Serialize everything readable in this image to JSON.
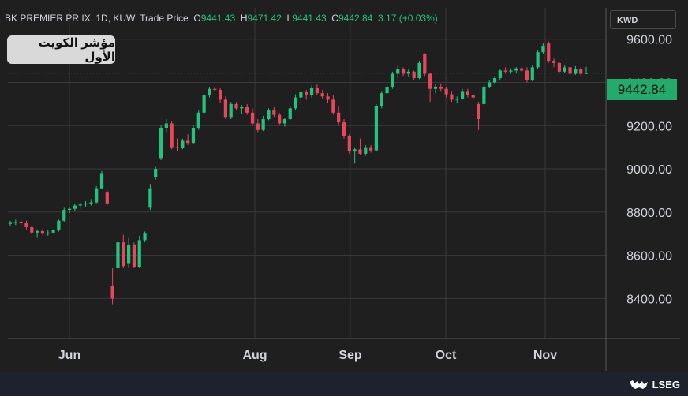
{
  "header": {
    "symbol": "BK PREMIER PR IX, 1D, KUW, Trade Price",
    "open_label": "O",
    "open": "9441.43",
    "high_label": "H",
    "high": "9471.42",
    "low_label": "L",
    "low": "9441.43",
    "close_label": "C",
    "close": "9442.84",
    "change": "3.17 (+0.03%)"
  },
  "title": "مؤشر الكويت الأول",
  "currency": "KWD",
  "last_price": "9442.84",
  "brand": "LSEG",
  "colors": {
    "up": "#22c37d",
    "down": "#e8475b",
    "background": "#1f1f1f",
    "grid": "#3a3a3a",
    "last_price_bg": "#22ab6b"
  },
  "chart_data": {
    "type": "candlestick",
    "y_ticks": [
      "9600.00",
      "9400.00",
      "9200.00",
      "9000.00",
      "8800.00",
      "8600.00",
      "8400.00"
    ],
    "y_tick_values": [
      9600,
      9400,
      9200,
      9000,
      8800,
      8600,
      8400
    ],
    "x_ticks": [
      "Jun",
      "Aug",
      "Sep",
      "Oct",
      "Nov"
    ],
    "ylim": [
      8215,
      9745
    ],
    "grid": true,
    "candles": [
      {
        "o": 8745,
        "h": 8760,
        "l": 8735,
        "c": 8750
      },
      {
        "o": 8750,
        "h": 8765,
        "l": 8740,
        "c": 8755
      },
      {
        "o": 8755,
        "h": 8770,
        "l": 8740,
        "c": 8748
      },
      {
        "o": 8748,
        "h": 8760,
        "l": 8720,
        "c": 8730
      },
      {
        "o": 8730,
        "h": 8740,
        "l": 8695,
        "c": 8705
      },
      {
        "o": 8705,
        "h": 8720,
        "l": 8680,
        "c": 8712
      },
      {
        "o": 8712,
        "h": 8720,
        "l": 8695,
        "c": 8700
      },
      {
        "o": 8700,
        "h": 8715,
        "l": 8690,
        "c": 8705
      },
      {
        "o": 8705,
        "h": 8720,
        "l": 8700,
        "c": 8715
      },
      {
        "o": 8715,
        "h": 8765,
        "l": 8710,
        "c": 8760
      },
      {
        "o": 8760,
        "h": 8820,
        "l": 8755,
        "c": 8810
      },
      {
        "o": 8810,
        "h": 8825,
        "l": 8795,
        "c": 8815
      },
      {
        "o": 8815,
        "h": 8840,
        "l": 8805,
        "c": 8830
      },
      {
        "o": 8830,
        "h": 8845,
        "l": 8815,
        "c": 8835
      },
      {
        "o": 8835,
        "h": 8850,
        "l": 8825,
        "c": 8840
      },
      {
        "o": 8840,
        "h": 8860,
        "l": 8830,
        "c": 8845
      },
      {
        "o": 8845,
        "h": 8920,
        "l": 8840,
        "c": 8910
      },
      {
        "o": 8910,
        "h": 8990,
        "l": 8905,
        "c": 8980
      },
      {
        "o": 8890,
        "h": 8900,
        "l": 8830,
        "c": 8840
      },
      {
        "o": 8460,
        "h": 8540,
        "l": 8370,
        "c": 8400
      },
      {
        "o": 8540,
        "h": 8680,
        "l": 8530,
        "c": 8660
      },
      {
        "o": 8660,
        "h": 8695,
        "l": 8540,
        "c": 8550
      },
      {
        "o": 8560,
        "h": 8680,
        "l": 8540,
        "c": 8650
      },
      {
        "o": 8650,
        "h": 8660,
        "l": 8540,
        "c": 8545
      },
      {
        "o": 8545,
        "h": 8690,
        "l": 8540,
        "c": 8670
      },
      {
        "o": 8670,
        "h": 8710,
        "l": 8660,
        "c": 8700
      },
      {
        "o": 8820,
        "h": 8930,
        "l": 8810,
        "c": 8910
      },
      {
        "o": 8960,
        "h": 9010,
        "l": 8950,
        "c": 9000
      },
      {
        "o": 9050,
        "h": 9200,
        "l": 9040,
        "c": 9190
      },
      {
        "o": 9190,
        "h": 9230,
        "l": 9170,
        "c": 9210
      },
      {
        "o": 9210,
        "h": 9220,
        "l": 9090,
        "c": 9100
      },
      {
        "o": 9100,
        "h": 9140,
        "l": 9080,
        "c": 9095
      },
      {
        "o": 9095,
        "h": 9140,
        "l": 9090,
        "c": 9130
      },
      {
        "o": 9130,
        "h": 9160,
        "l": 9110,
        "c": 9120
      },
      {
        "o": 9120,
        "h": 9205,
        "l": 9115,
        "c": 9190
      },
      {
        "o": 9190,
        "h": 9270,
        "l": 9180,
        "c": 9260
      },
      {
        "o": 9260,
        "h": 9345,
        "l": 9250,
        "c": 9340
      },
      {
        "o": 9340,
        "h": 9380,
        "l": 9330,
        "c": 9370
      },
      {
        "o": 9370,
        "h": 9380,
        "l": 9360,
        "c": 9365
      },
      {
        "o": 9365,
        "h": 9375,
        "l": 9305,
        "c": 9320
      },
      {
        "o": 9320,
        "h": 9335,
        "l": 9230,
        "c": 9240
      },
      {
        "o": 9240,
        "h": 9310,
        "l": 9230,
        "c": 9300
      },
      {
        "o": 9300,
        "h": 9310,
        "l": 9270,
        "c": 9280
      },
      {
        "o": 9280,
        "h": 9295,
        "l": 9255,
        "c": 9285
      },
      {
        "o": 9285,
        "h": 9300,
        "l": 9250,
        "c": 9260
      },
      {
        "o": 9260,
        "h": 9280,
        "l": 9200,
        "c": 9210
      },
      {
        "o": 9210,
        "h": 9230,
        "l": 9170,
        "c": 9180
      },
      {
        "o": 9180,
        "h": 9245,
        "l": 9175,
        "c": 9230
      },
      {
        "o": 9230,
        "h": 9280,
        "l": 9225,
        "c": 9270
      },
      {
        "o": 9270,
        "h": 9285,
        "l": 9240,
        "c": 9250
      },
      {
        "o": 9250,
        "h": 9260,
        "l": 9200,
        "c": 9210
      },
      {
        "o": 9210,
        "h": 9235,
        "l": 9195,
        "c": 9230
      },
      {
        "o": 9230,
        "h": 9290,
        "l": 9225,
        "c": 9280
      },
      {
        "o": 9280,
        "h": 9345,
        "l": 9270,
        "c": 9330
      },
      {
        "o": 9330,
        "h": 9365,
        "l": 9300,
        "c": 9355
      },
      {
        "o": 9355,
        "h": 9365,
        "l": 9320,
        "c": 9340
      },
      {
        "o": 9340,
        "h": 9385,
        "l": 9330,
        "c": 9375
      },
      {
        "o": 9375,
        "h": 9390,
        "l": 9340,
        "c": 9350
      },
      {
        "o": 9350,
        "h": 9365,
        "l": 9325,
        "c": 9335
      },
      {
        "o": 9335,
        "h": 9350,
        "l": 9305,
        "c": 9320
      },
      {
        "o": 9320,
        "h": 9340,
        "l": 9250,
        "c": 9260
      },
      {
        "o": 9260,
        "h": 9290,
        "l": 9200,
        "c": 9215
      },
      {
        "o": 9215,
        "h": 9230,
        "l": 9140,
        "c": 9150
      },
      {
        "o": 9150,
        "h": 9160,
        "l": 9070,
        "c": 9080
      },
      {
        "o": 9080,
        "h": 9100,
        "l": 9025,
        "c": 9090
      },
      {
        "o": 9090,
        "h": 9140,
        "l": 9065,
        "c": 9070
      },
      {
        "o": 9070,
        "h": 9110,
        "l": 9060,
        "c": 9100
      },
      {
        "o": 9100,
        "h": 9110,
        "l": 9075,
        "c": 9085
      },
      {
        "o": 9085,
        "h": 9300,
        "l": 9080,
        "c": 9290
      },
      {
        "o": 9290,
        "h": 9360,
        "l": 9280,
        "c": 9350
      },
      {
        "o": 9350,
        "h": 9390,
        "l": 9340,
        "c": 9380
      },
      {
        "o": 9380,
        "h": 9450,
        "l": 9370,
        "c": 9440
      },
      {
        "o": 9440,
        "h": 9480,
        "l": 9420,
        "c": 9460
      },
      {
        "o": 9460,
        "h": 9470,
        "l": 9430,
        "c": 9440
      },
      {
        "o": 9440,
        "h": 9460,
        "l": 9425,
        "c": 9450
      },
      {
        "o": 9450,
        "h": 9455,
        "l": 9410,
        "c": 9420
      },
      {
        "o": 9420,
        "h": 9500,
        "l": 9415,
        "c": 9490
      },
      {
        "o": 9530,
        "h": 9535,
        "l": 9430,
        "c": 9440
      },
      {
        "o": 9440,
        "h": 9445,
        "l": 9310,
        "c": 9370
      },
      {
        "o": 9370,
        "h": 9390,
        "l": 9350,
        "c": 9380
      },
      {
        "o": 9380,
        "h": 9395,
        "l": 9360,
        "c": 9370
      },
      {
        "o": 9370,
        "h": 9380,
        "l": 9330,
        "c": 9345
      },
      {
        "o": 9345,
        "h": 9360,
        "l": 9310,
        "c": 9320
      },
      {
        "o": 9320,
        "h": 9335,
        "l": 9305,
        "c": 9325
      },
      {
        "o": 9325,
        "h": 9370,
        "l": 9320,
        "c": 9360
      },
      {
        "o": 9360,
        "h": 9370,
        "l": 9330,
        "c": 9340
      },
      {
        "o": 9340,
        "h": 9345,
        "l": 9320,
        "c": 9330
      },
      {
        "o": 9300,
        "h": 9310,
        "l": 9180,
        "c": 9230
      },
      {
        "o": 9300,
        "h": 9390,
        "l": 9290,
        "c": 9380
      },
      {
        "o": 9380,
        "h": 9410,
        "l": 9375,
        "c": 9400
      },
      {
        "o": 9400,
        "h": 9430,
        "l": 9395,
        "c": 9420
      },
      {
        "o": 9420,
        "h": 9460,
        "l": 9410,
        "c": 9455
      },
      {
        "o": 9455,
        "h": 9470,
        "l": 9440,
        "c": 9450
      },
      {
        "o": 9450,
        "h": 9465,
        "l": 9440,
        "c": 9455
      },
      {
        "o": 9455,
        "h": 9470,
        "l": 9445,
        "c": 9465
      },
      {
        "o": 9465,
        "h": 9470,
        "l": 9450,
        "c": 9455
      },
      {
        "o": 9455,
        "h": 9470,
        "l": 9400,
        "c": 9410
      },
      {
        "o": 9410,
        "h": 9480,
        "l": 9405,
        "c": 9470
      },
      {
        "o": 9470,
        "h": 9550,
        "l": 9460,
        "c": 9540
      },
      {
        "o": 9540,
        "h": 9580,
        "l": 9530,
        "c": 9570
      },
      {
        "o": 9580,
        "h": 9590,
        "l": 9490,
        "c": 9500
      },
      {
        "o": 9500,
        "h": 9510,
        "l": 9470,
        "c": 9490
      },
      {
        "o": 9490,
        "h": 9495,
        "l": 9440,
        "c": 9450
      },
      {
        "o": 9450,
        "h": 9480,
        "l": 9445,
        "c": 9470
      },
      {
        "o": 9470,
        "h": 9475,
        "l": 9430,
        "c": 9440
      },
      {
        "o": 9440,
        "h": 9475,
        "l": 9435,
        "c": 9460
      },
      {
        "o": 9460,
        "h": 9470,
        "l": 9430,
        "c": 9440
      },
      {
        "o": 9441.43,
        "h": 9471.42,
        "l": 9441.43,
        "c": 9442.84
      }
    ]
  }
}
